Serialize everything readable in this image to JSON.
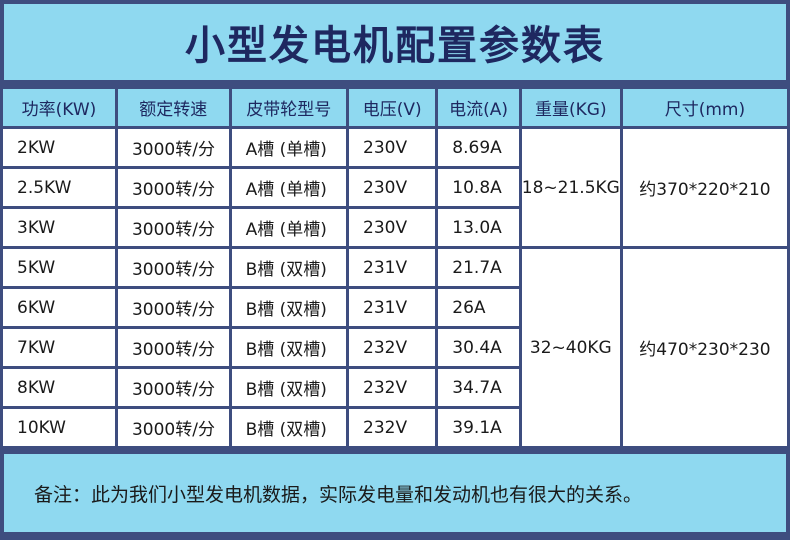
{
  "title": "小型发电机配置参数表",
  "table": {
    "headers": [
      "功率(KW)",
      "额定转速",
      "皮带轮型号",
      "电压(V)",
      "电流(A)",
      "重量(KG)",
      "尺寸(mm)"
    ],
    "rows": [
      {
        "power": "2KW",
        "speed": "3000转/分",
        "pulley": "A槽 (单槽)",
        "voltage": "230V",
        "current": "8.69A"
      },
      {
        "power": "2.5KW",
        "speed": "3000转/分",
        "pulley": "A槽 (单槽)",
        "voltage": "230V",
        "current": "10.8A"
      },
      {
        "power": "3KW",
        "speed": "3000转/分",
        "pulley": "A槽 (单槽)",
        "voltage": "230V",
        "current": "13.0A"
      },
      {
        "power": "5KW",
        "speed": "3000转/分",
        "pulley": "B槽 (双槽)",
        "voltage": "231V",
        "current": "21.7A"
      },
      {
        "power": "6KW",
        "speed": "3000转/分",
        "pulley": "B槽 (双槽)",
        "voltage": "231V",
        "current": "26A"
      },
      {
        "power": "7KW",
        "speed": "3000转/分",
        "pulley": "B槽 (双槽)",
        "voltage": "232V",
        "current": "30.4A"
      },
      {
        "power": "8KW",
        "speed": "3000转/分",
        "pulley": "B槽 (双槽)",
        "voltage": "232V",
        "current": "34.7A"
      },
      {
        "power": "10KW",
        "speed": "3000转/分",
        "pulley": "B槽 (双槽)",
        "voltage": "232V",
        "current": "39.1A"
      }
    ],
    "groups": [
      {
        "weight": "18~21.5KG",
        "size": "约370*220*210"
      },
      {
        "weight": "32~40KG",
        "size": "约470*230*230"
      }
    ]
  },
  "note": "备注：此为我们小型发电机数据，实际发电量和发动机也有很大的关系。"
}
